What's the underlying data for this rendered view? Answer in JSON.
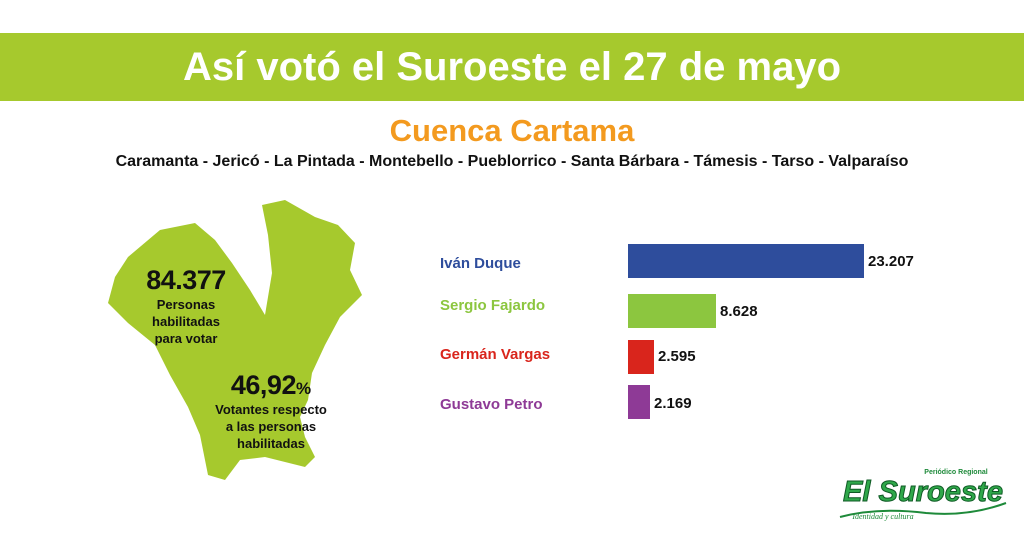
{
  "header": {
    "title": "Así votó el Suroeste el 27 de mayo",
    "subtitle": "Cuenca Cartama",
    "municipalities": "Caramanta - Jericó - La Pintada - Montebello - Pueblorrico - Santa Bárbara - Támesis - Tarso - Valparaíso"
  },
  "stats": {
    "eligible_value": "84.377",
    "eligible_label_1": "Personas",
    "eligible_label_2": "habilitadas",
    "eligible_label_3": "para votar",
    "turnout_value": "46,92",
    "turnout_unit": "%",
    "turnout_label_1": "Votantes respecto",
    "turnout_label_2": "a las personas",
    "turnout_label_3": "habilitadas"
  },
  "colors": {
    "banner": "#a6c92d",
    "subtitle": "#f39a1f",
    "map": "#a6c92d"
  },
  "chart_data": {
    "type": "bar",
    "orientation": "horizontal",
    "categories": [
      "Iván Duque",
      "Sergio Fajardo",
      "Germán Vargas",
      "Gustavo Petro"
    ],
    "values": [
      23207,
      8628,
      2595,
      2169
    ],
    "value_labels": [
      "23.207",
      "8.628",
      "2.595",
      "2.169"
    ],
    "colors": [
      "#2e4d9c",
      "#8cc63f",
      "#d9251c",
      "#8e3a96"
    ],
    "grid": false,
    "legend": "none"
  },
  "logo": {
    "kicker": "Periódico Regional",
    "name": "El Suroeste",
    "tagline": "Identidad y cultura"
  }
}
